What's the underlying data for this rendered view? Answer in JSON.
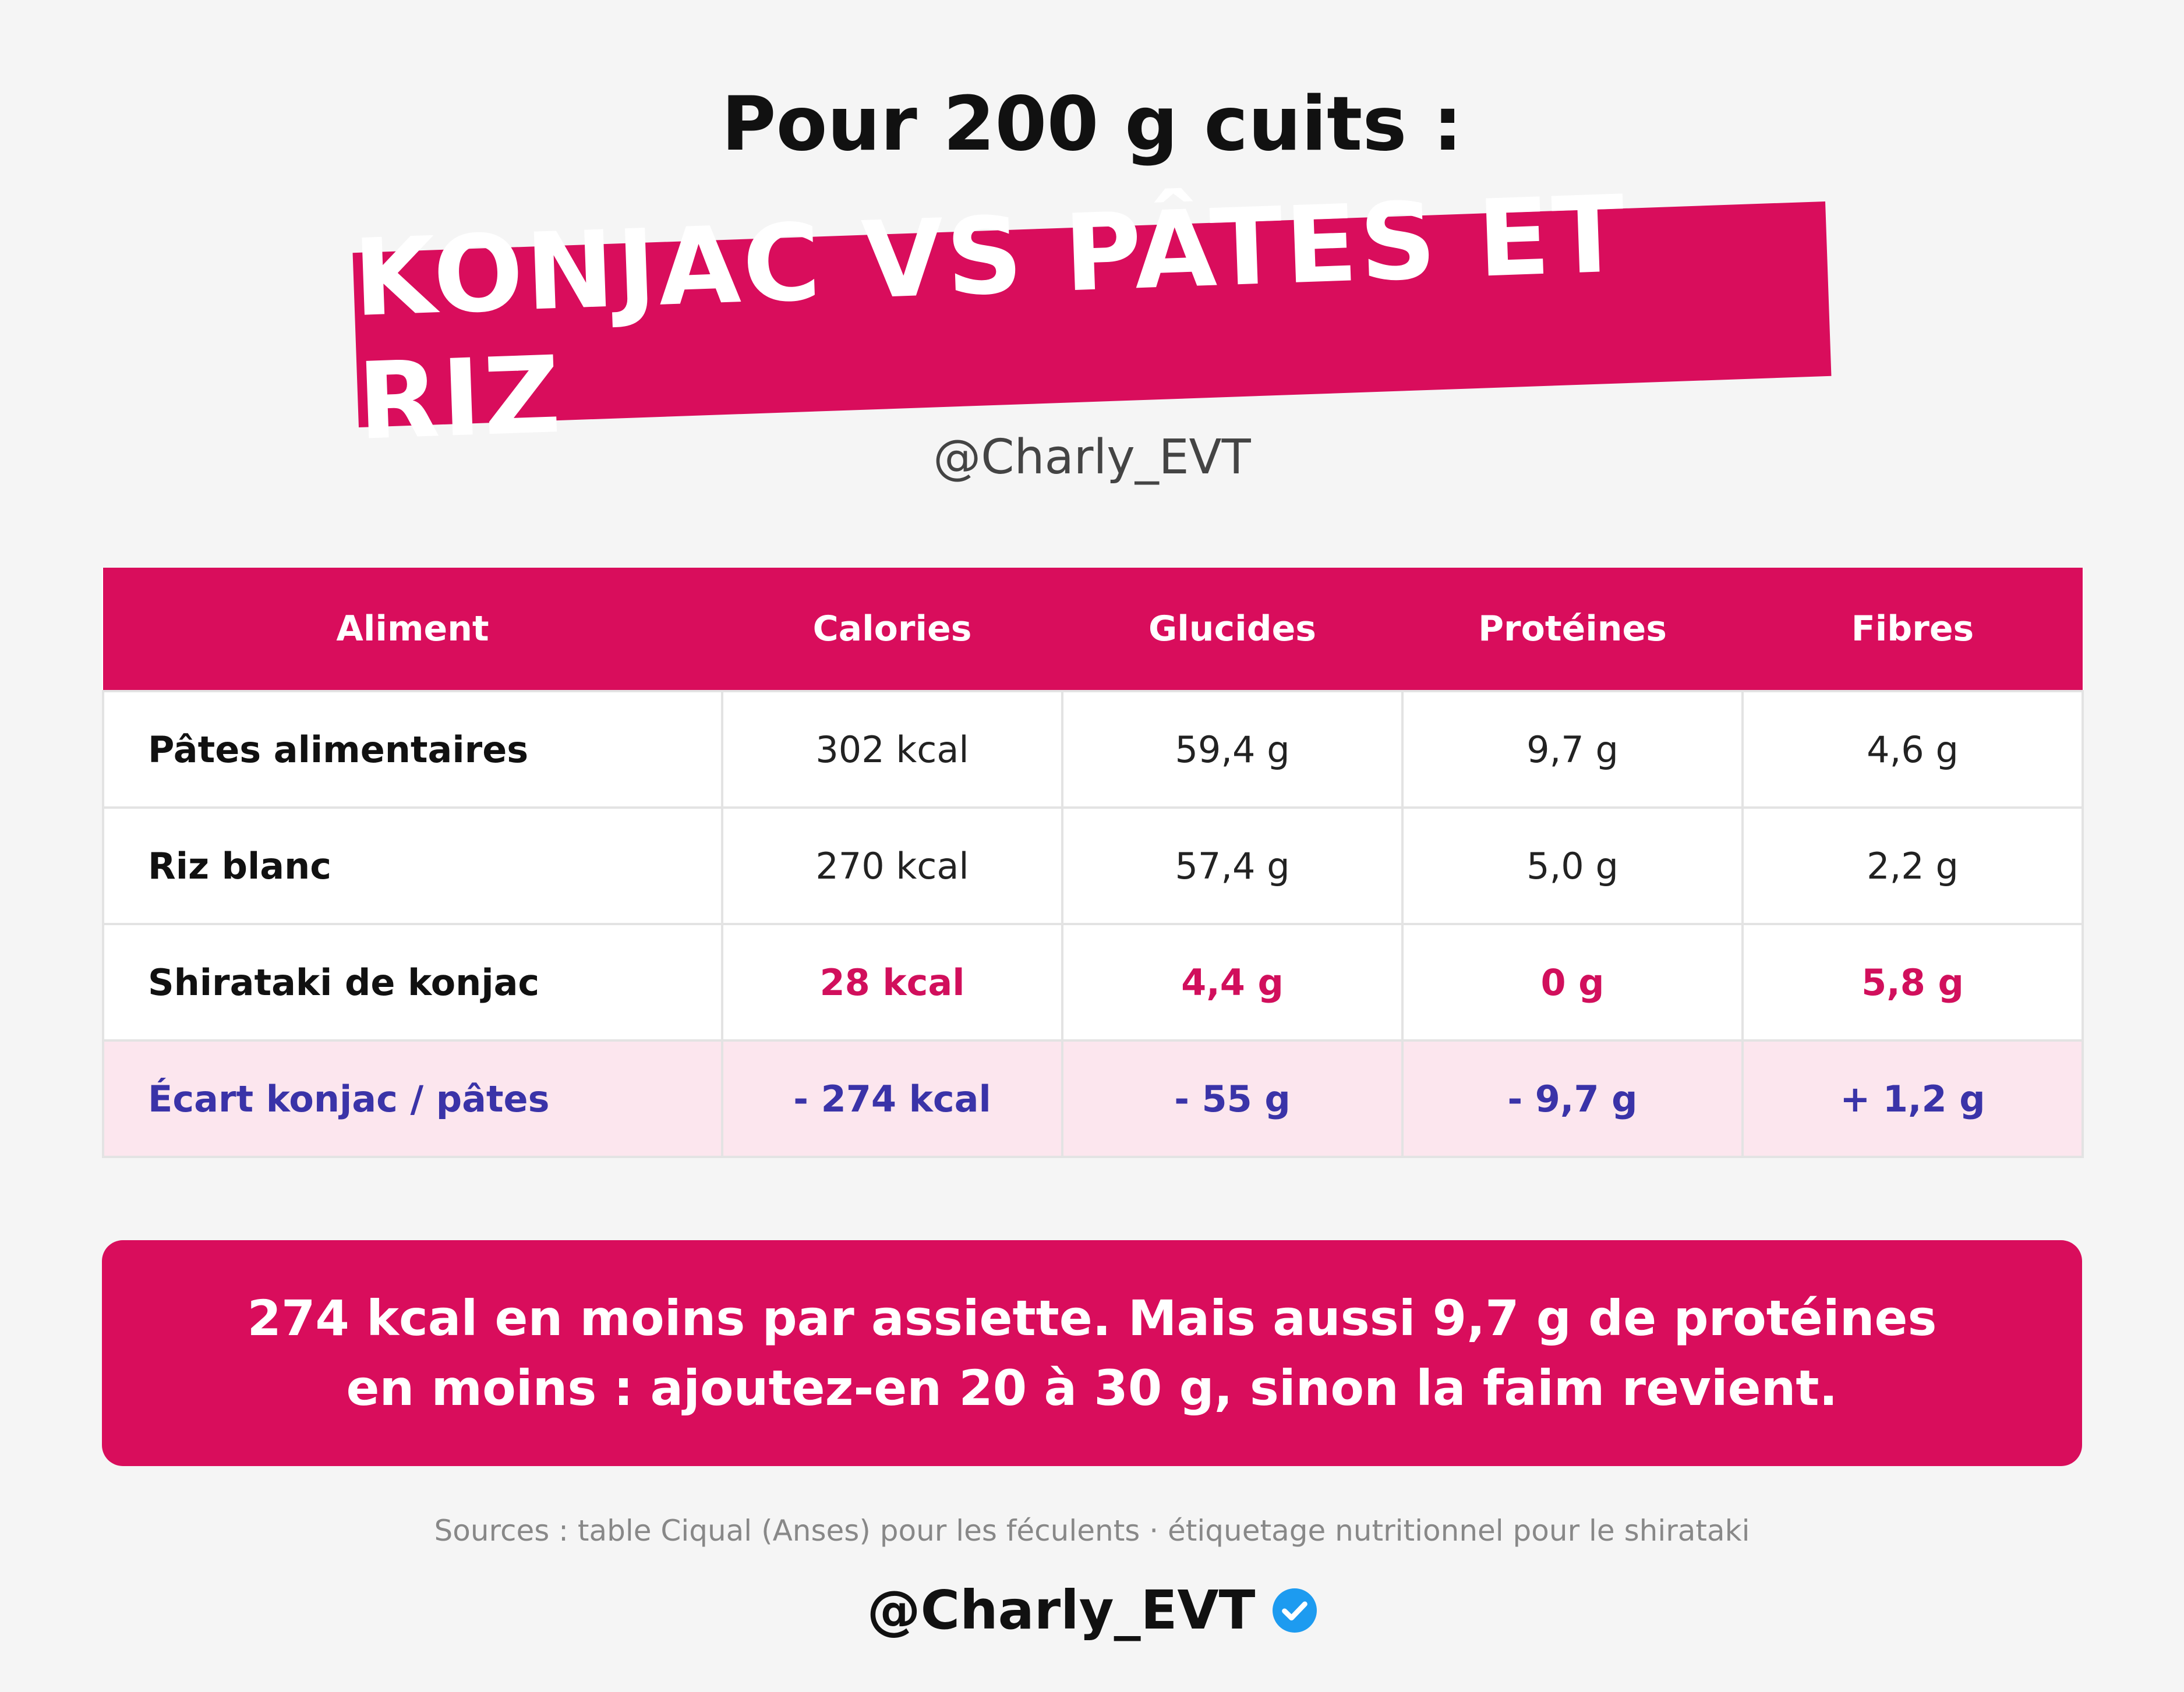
{
  "header": {
    "subtitle": "Pour 200 g cuits :",
    "banner_title": "KONJAC VS PÂTES ET RIZ",
    "handle": "@Charly_EVT"
  },
  "table": {
    "columns": [
      "Aliment",
      "Calories",
      "Glucides",
      "Protéines",
      "Fibres"
    ],
    "rows": [
      {
        "food": "Pâtes alimentaires",
        "calories": "302 kcal",
        "glucides": "59,4 g",
        "proteines": "9,7 g",
        "fibres": "4,6 g"
      },
      {
        "food": "Riz blanc",
        "calories": "270 kcal",
        "glucides": "57,4 g",
        "proteines": "5,0 g",
        "fibres": "2,2 g"
      },
      {
        "food": "Shirataki de konjac",
        "calories": "28 kcal",
        "glucides": "4,4 g",
        "proteines": "0 g",
        "fibres": "5,8 g"
      },
      {
        "food": "Écart konjac / pâtes",
        "calories": "- 274 kcal",
        "glucides": "- 55 g",
        "proteines": "- 9,7 g",
        "fibres": "+ 1,2 g"
      }
    ]
  },
  "callout": {
    "line1": "274 kcal en moins par assiette. Mais aussi 9,7 g de protéines",
    "line2": "en moins : ajoutez-en 20 à 30 g, sinon la faim revient."
  },
  "sources": "Sources : table Ciqual (Anses) pour les féculents · étiquetage nutritionnel pour le shirataki",
  "footer": {
    "handle": "@Charly_EVT",
    "verified_icon": "verified-badge-icon"
  },
  "colors": {
    "accent": "#d90d5c",
    "highlight_text": "#d10f5c",
    "diff_text": "#3a33a8",
    "diff_bg": "#fce6ee",
    "verified": "#1d9bf0"
  }
}
